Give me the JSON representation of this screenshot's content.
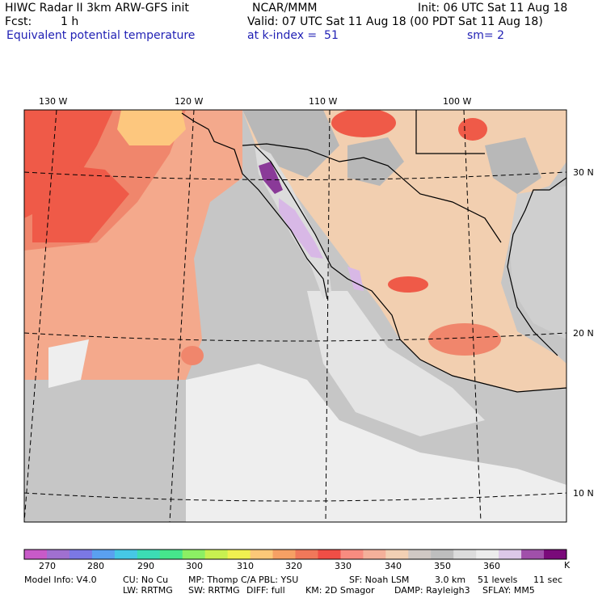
{
  "header": {
    "title": "HIWC Radar II 3km ARW-GFS init",
    "center": "NCAR/MMM",
    "init": "Init: 06 UTC Sat 11 Aug 18",
    "fcst_label": "Fcst:",
    "fcst_value": "1 h",
    "valid": "Valid: 07 UTC Sat 11 Aug 18 (00 PDT Sat 11 Aug 18)",
    "field": "Equivalent potential temperature",
    "level": "at k-index =  51",
    "smooth": "sm= 2"
  },
  "map": {
    "lon_labels": [
      "130 W",
      "120 W",
      "110 W",
      "100 W"
    ],
    "lat_labels": [
      "30 N",
      "20 N",
      "10 N"
    ],
    "colors": {
      "ocean_gray": "#c6c6c6",
      "land_gray": "#b8b8b8",
      "light": "#eeeeee",
      "tan": "#f2cfb0",
      "salmon": "#f4a98c",
      "coral": "#f0866c",
      "red": "#ef5a48",
      "orange": "#fdc77e",
      "purple": "#8a3a98",
      "lavender": "#d8b8e6"
    }
  },
  "colorbar": {
    "colors": [
      "#c85ac8",
      "#a070d0",
      "#7b78e4",
      "#5aa0f0",
      "#46c8e6",
      "#3cdcb4",
      "#46e68c",
      "#8cef64",
      "#c8f050",
      "#f0f050",
      "#fcc878",
      "#f6a064",
      "#f0785a",
      "#ef4e46",
      "#f88c80",
      "#f4b09a",
      "#f2d0b4",
      "#d0c8c4",
      "#bebebe",
      "#dcdcdc",
      "#ececec",
      "#dcc8e8",
      "#a050aa",
      "#7a0a7a"
    ],
    "labels": [
      "270",
      "280",
      "290",
      "300",
      "310",
      "320",
      "330",
      "340",
      "350",
      "360",
      "K"
    ]
  },
  "footer": {
    "model_info": "Model Info: V4.0",
    "cu": "CU: No Cu",
    "mp": "MP: Thomp C/A",
    "pbl": "PBL: YSU",
    "sf": "SF: Noah LSM",
    "res": "3.0 km",
    "levels": "51 levels",
    "step": "11 sec",
    "lw": "LW: RRTMG",
    "sw": "SW: RRTMG",
    "diff": "DIFF: full",
    "km": "KM: 2D Smagor",
    "damp": "DAMP: Rayleigh3",
    "sflay": "SFLAY: MM5"
  }
}
